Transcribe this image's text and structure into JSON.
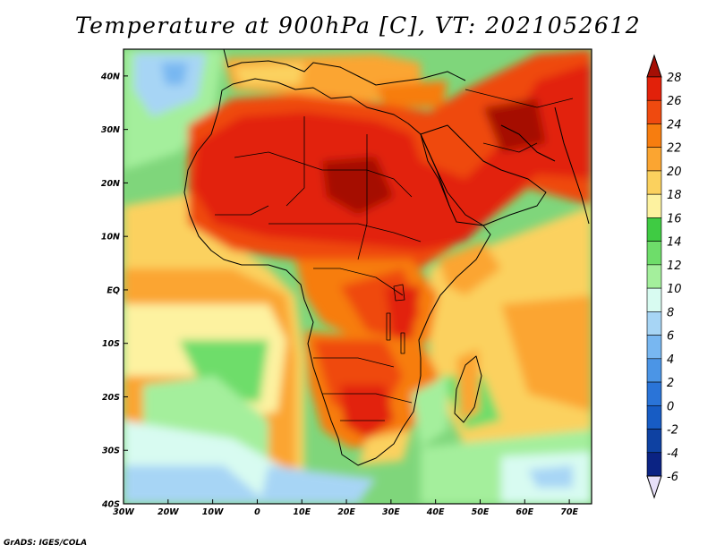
{
  "title": "Temperature at 900hPa [C], VT: 2021052612",
  "credit": "GrADS: IGES/COLA",
  "map": {
    "lon_labels": [
      "30W",
      "20W",
      "10W",
      "0",
      "10E",
      "20E",
      "30E",
      "40E",
      "50E",
      "60E",
      "70E"
    ],
    "lat_labels": [
      "40N",
      "30N",
      "20N",
      "10N",
      "EQ",
      "10S",
      "20S",
      "30S",
      "40S"
    ]
  },
  "colorbar": {
    "levels": [
      "28",
      "26",
      "24",
      "22",
      "20",
      "18",
      "16",
      "14",
      "12",
      "10",
      "8",
      "6",
      "4",
      "2",
      "0",
      "-2",
      "-4",
      "-6"
    ],
    "colors": [
      "#a50f05",
      "#e2210a",
      "#ef4a0f",
      "#f77d0f",
      "#fba531",
      "#fbd15e",
      "#fdf2a0",
      "#3fcb43",
      "#6edd6a",
      "#a4ef9c",
      "#d8fbf1",
      "#a7d5f5",
      "#78b7f1",
      "#4b95e6",
      "#2a74d8",
      "#175cc4",
      "#0e41a2",
      "#0b2383",
      "#e7e0f8"
    ]
  }
}
